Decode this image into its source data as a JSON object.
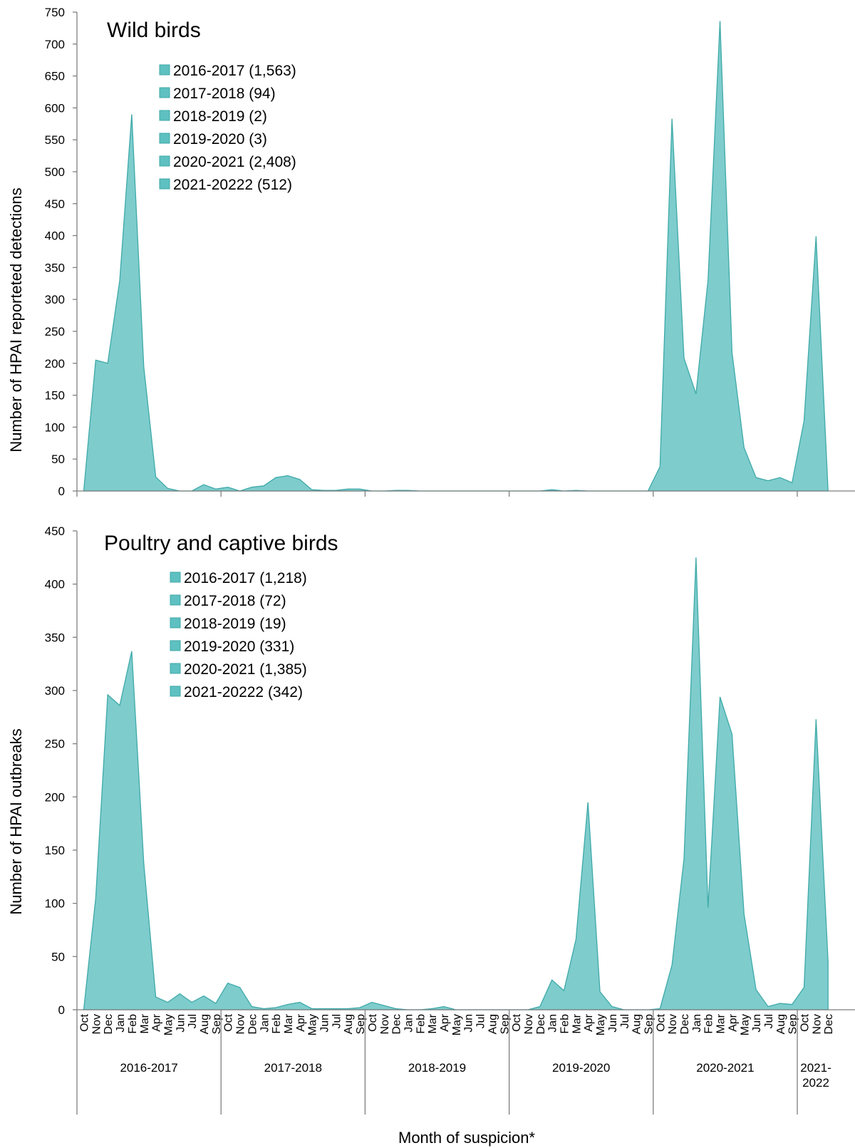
{
  "colors": {
    "fill": "#7ecccc",
    "stroke": "#3fa9a9",
    "axis": "#7f7f7f",
    "legend_swatch": "#5ec0c0"
  },
  "xlabel": "Month of suspicion*",
  "months": [
    "Oct",
    "Nov",
    "Dec",
    "Jan",
    "Feb",
    "Mar",
    "Apr",
    "May",
    "Jun",
    "Jul",
    "Aug",
    "Sep"
  ],
  "seasons": [
    "2016-2017",
    "2017-2018",
    "2018-2019",
    "2019-2020",
    "2020-2021",
    "2021-2022"
  ],
  "season_label_lines": [
    [
      "2016-2017"
    ],
    [
      "2017-2018"
    ],
    [
      "2018-2019"
    ],
    [
      "2019-2020"
    ],
    [
      "2020-2021"
    ],
    [
      "2021-",
      "2022"
    ]
  ],
  "chart_data": [
    {
      "type": "area",
      "title": "Wild birds",
      "ylabel": "Number of HPAI reporteted detections",
      "ylim": [
        0,
        750
      ],
      "yticks": [
        0,
        50,
        100,
        150,
        200,
        250,
        300,
        350,
        400,
        450,
        500,
        550,
        600,
        650,
        700,
        750
      ],
      "legend": [
        "2016-2017 (1,563)",
        "2017-2018 (94)",
        "2018-2019 (2)",
        "2019-2020 (3)",
        "2020-2021 (2,408)",
        "2021-20222 (512)"
      ],
      "legend_position": "top-left",
      "values": [
        0,
        205,
        200,
        330,
        590,
        195,
        22,
        4,
        0,
        0,
        10,
        3,
        6,
        0,
        6,
        8,
        21,
        24,
        18,
        2,
        1,
        1,
        3,
        3,
        0,
        0,
        1,
        1,
        0,
        0,
        0,
        0,
        0,
        0,
        0,
        0,
        0,
        0,
        0,
        2,
        0,
        1,
        0,
        0,
        0,
        0,
        0,
        0,
        38,
        583,
        208,
        152,
        330,
        736,
        217,
        68,
        21,
        16,
        21,
        13,
        110,
        399,
        0
      ]
    },
    {
      "type": "area",
      "title": "Poultry and captive birds",
      "ylabel": "Number of HPAI outbreaks",
      "ylim": [
        0,
        450
      ],
      "yticks": [
        0,
        50,
        100,
        150,
        200,
        250,
        300,
        350,
        400,
        450
      ],
      "legend": [
        "2016-2017 (1,218)",
        "2017-2018 (72)",
        "2018-2019 (19)",
        "2019-2020 (331)",
        "2020-2021 (1,385)",
        "2021-20222 (342)"
      ],
      "legend_position": "top-left",
      "values": [
        0,
        105,
        296,
        286,
        337,
        138,
        12,
        7,
        15,
        7,
        13,
        6,
        25,
        21,
        3,
        1,
        2,
        5,
        7,
        1,
        1,
        1,
        1,
        2,
        7,
        4,
        1,
        0,
        0,
        1,
        3,
        0,
        0,
        0,
        0,
        0,
        0,
        0,
        3,
        28,
        18,
        66,
        195,
        17,
        3,
        0,
        0,
        0,
        1,
        42,
        142,
        425,
        96,
        294,
        259,
        90,
        19,
        3,
        6,
        5,
        21,
        273,
        45
      ]
    }
  ]
}
